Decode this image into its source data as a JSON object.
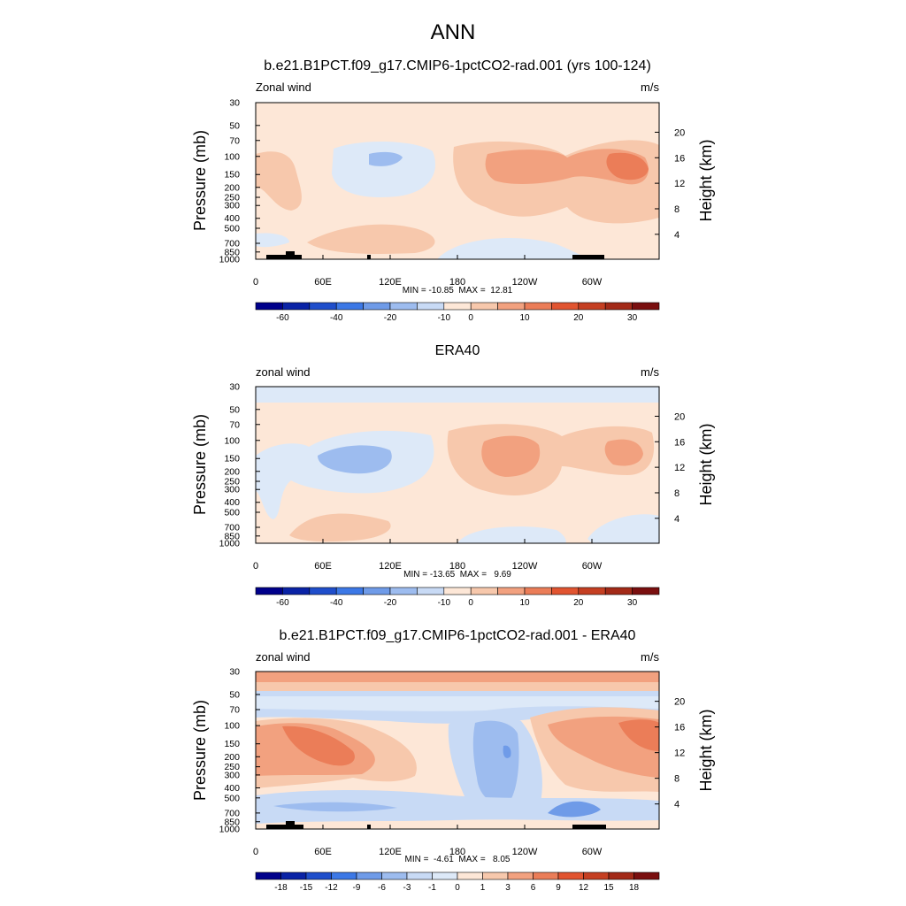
{
  "figure_title": "ANN",
  "axes_labels": {
    "left": "Pressure (mb)",
    "right": "Height (km)",
    "x_ticks": [
      "0",
      "60E",
      "120E",
      "180",
      "120W",
      "60W"
    ],
    "p_ticks": [
      "30",
      "50",
      "70",
      "100",
      "150",
      "200",
      "250",
      "300",
      "400",
      "500",
      "700",
      "850",
      "1000"
    ],
    "h_ticks": [
      "20",
      "16",
      "12",
      "8",
      "4"
    ]
  },
  "panels": [
    {
      "title": "b.e21.B1PCT.f09_g17.CMIP6-1pctCO2-rad.001 (yrs 100-124)",
      "left_label": "Zonal wind",
      "right_label": "m/s",
      "stats": "MIN = -10.85  MAX =  12.81",
      "colorbar_labels": [
        "-60",
        "-40",
        "-20",
        "-10",
        "0",
        "10",
        "20",
        "30"
      ]
    },
    {
      "title": "ERA40",
      "left_label": "zonal wind",
      "right_label": "m/s",
      "stats": "MIN = -13.65  MAX =   9.69",
      "colorbar_labels": [
        "-60",
        "-40",
        "-20",
        "-10",
        "0",
        "10",
        "20",
        "30"
      ]
    },
    {
      "title": "b.e21.B1PCT.f09_g17.CMIP6-1pctCO2-rad.001 - ERA40",
      "left_label": "zonal wind",
      "right_label": "m/s",
      "stats": "MIN =  -4.61  MAX =   8.05",
      "colorbar_labels": [
        "-18",
        "-15",
        "-12",
        "-9",
        "-6",
        "-3",
        "-1",
        "0",
        "1",
        "3",
        "6",
        "9",
        "12",
        "15",
        "18"
      ]
    }
  ],
  "palettes": {
    "wind": [
      "#00008b",
      "#0a23a6",
      "#1f4ecb",
      "#3c78e6",
      "#6f9be8",
      "#9dbcef",
      "#c8daf5",
      "#fde7d7",
      "#f7c8ac",
      "#f2a17f",
      "#eb7d58",
      "#e15430",
      "#c53f22",
      "#a32a18",
      "#7a0f0f"
    ],
    "diff": [
      "#00008b",
      "#0a23a6",
      "#1f4ecb",
      "#3c78e6",
      "#6f9be8",
      "#9dbcef",
      "#c8daf5",
      "#dde9f8",
      "#fde7d7",
      "#f7c8ac",
      "#f2a17f",
      "#eb7d58",
      "#e15430",
      "#c53f22",
      "#a32a18",
      "#7a0f0f"
    ]
  },
  "chart_data": [
    {
      "type": "heatmap",
      "title": "b.e21.B1PCT.f09_g17.CMIP6-1pctCO2-rad.001 (yrs 100-124)",
      "variable": "Zonal wind",
      "units": "m/s",
      "x_dim": "longitude",
      "y_dim": "pressure (mb)",
      "min": -10.85,
      "max": 12.81,
      "contour_levels": [
        -60,
        -50,
        -40,
        -30,
        -20,
        -15,
        -10,
        -5,
        0,
        5,
        10,
        15,
        20,
        25,
        30
      ],
      "features": [
        {
          "lon_range": [
            90,
            130
          ],
          "pressure": 100,
          "value": -7.5
        },
        {
          "lon_range": [
            260,
            320
          ],
          "pressure": 120,
          "value": 5
        },
        {
          "lon_range": [
            315,
            340
          ],
          "pressure": 130,
          "value": 12.5
        },
        {
          "lon_range": [
            0,
            40
          ],
          "pressure": 150,
          "value": 2.5
        },
        {
          "lon_range": [
            0,
            20
          ],
          "pressure": 700,
          "value": -2.5
        },
        {
          "lon_range": [
            190,
            260
          ],
          "pressure": 800,
          "value": -2.5
        }
      ]
    },
    {
      "type": "heatmap",
      "title": "ERA40",
      "variable": "zonal wind",
      "units": "m/s",
      "x_dim": "longitude",
      "y_dim": "pressure (mb)",
      "min": -13.65,
      "max": 9.69,
      "contour_levels": [
        -60,
        -50,
        -40,
        -30,
        -20,
        -15,
        -10,
        -5,
        0,
        5,
        10,
        15,
        20,
        25,
        30
      ],
      "features": [
        {
          "lon_range": [
            0,
            360
          ],
          "pressure": 30,
          "value": -2.5
        },
        {
          "lon_range": [
            50,
            150
          ],
          "pressure": 150,
          "value": -7.5
        },
        {
          "lon_range": [
            200,
            290
          ],
          "pressure": 150,
          "value": 7.5
        },
        {
          "lon_range": [
            310,
            340
          ],
          "pressure": 150,
          "value": 7.5
        },
        {
          "lon_range": [
            30,
            120
          ],
          "pressure": 750,
          "value": 2.5
        },
        {
          "lon_range": [
            180,
            280
          ],
          "pressure": 900,
          "value": -2.5
        }
      ]
    },
    {
      "type": "heatmap",
      "title": "b.e21.B1PCT.f09_g17.CMIP6-1pctCO2-rad.001 - ERA40",
      "variable": "zonal wind",
      "units": "m/s",
      "x_dim": "longitude",
      "y_dim": "pressure (mb)",
      "min": -4.61,
      "max": 8.05,
      "contour_levels": [
        -18,
        -15,
        -12,
        -9,
        -6,
        -3,
        -1,
        0,
        1,
        3,
        6,
        9,
        12,
        15,
        18
      ],
      "features": [
        {
          "lon_range": [
            0,
            360
          ],
          "pressure": 35,
          "value": 2
        },
        {
          "lon_range": [
            0,
            360
          ],
          "pressure": 60,
          "value": -2
        },
        {
          "lon_range": [
            10,
            90
          ],
          "pressure": 200,
          "value": 4.5
        },
        {
          "lon_range": [
            320,
            360
          ],
          "pressure": 100,
          "value": 7.5
        },
        {
          "lon_range": [
            200,
            230
          ],
          "pressure": 200,
          "value": -4
        },
        {
          "lon_range": [
            0,
            360
          ],
          "pressure": 850,
          "value": -2
        }
      ]
    }
  ]
}
